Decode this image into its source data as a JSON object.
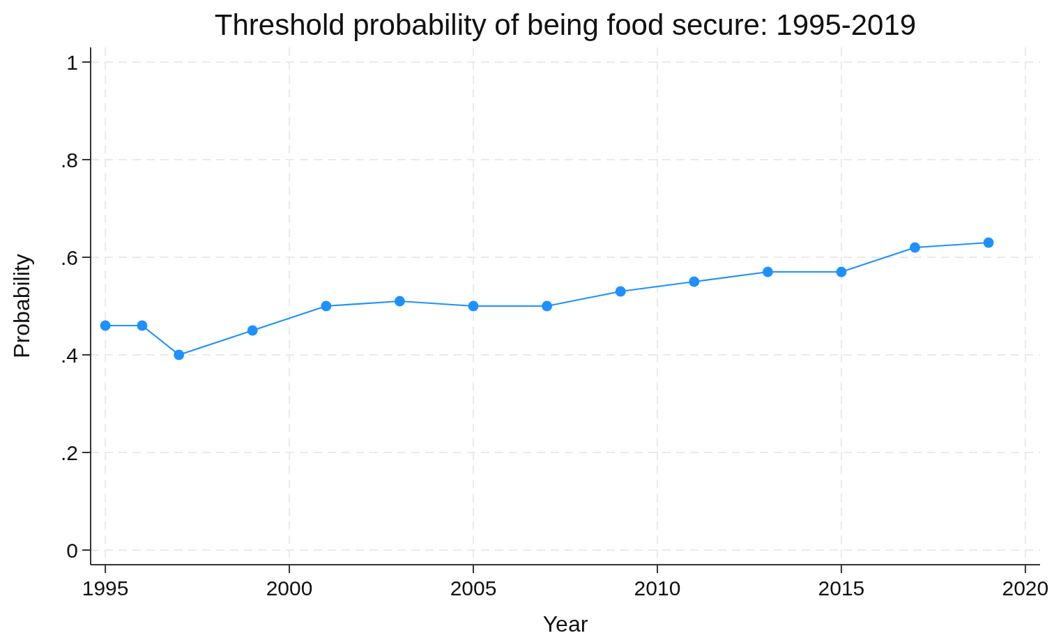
{
  "chart_data": {
    "type": "line",
    "title": "Threshold probability of being food secure: 1995-2019",
    "xlabel": "Year",
    "ylabel": "Probability",
    "x": [
      1995,
      1996,
      1997,
      1999,
      2001,
      2003,
      2005,
      2007,
      2009,
      2011,
      2013,
      2015,
      2017,
      2019
    ],
    "series": [
      {
        "color": "#1e90ff",
        "values": [
          0.46,
          0.46,
          0.4,
          0.45,
          0.5,
          0.51,
          0.5,
          0.5,
          0.53,
          0.55,
          0.57,
          0.57,
          0.62,
          0.63
        ]
      }
    ],
    "xlim": [
      1994.6,
      2020.4
    ],
    "xticks": [
      1995,
      2000,
      2005,
      2010,
      2015,
      2020
    ],
    "ylim": [
      -0.03,
      1.03
    ],
    "yticks": [
      0,
      {
        "value": 0.2,
        "label": ".2"
      },
      {
        "value": 0.4,
        "label": ".4"
      },
      {
        "value": 0.6,
        "label": ".6"
      },
      {
        "value": 0.8,
        "label": ".8"
      },
      1
    ],
    "grid": true,
    "marker": "circle",
    "line_style": "solid"
  }
}
